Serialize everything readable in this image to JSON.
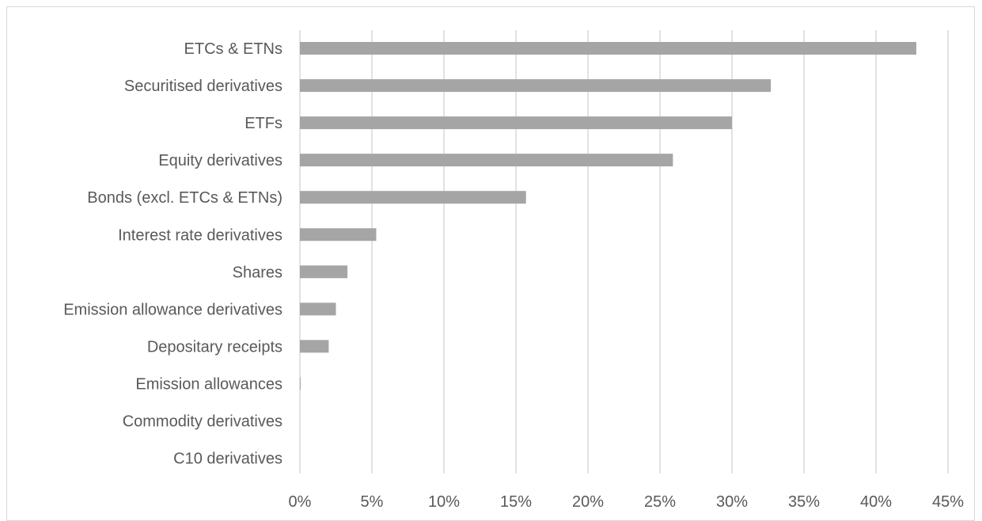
{
  "chart_data": {
    "type": "bar",
    "orientation": "horizontal",
    "title": "",
    "xlabel": "",
    "ylabel": "",
    "categories": [
      "ETCs & ETNs",
      "Securitised derivatives",
      "ETFs",
      "Equity derivatives",
      "Bonds (excl. ETCs & ETNs)",
      "Interest rate derivatives",
      "Shares",
      "Emission allowance derivatives",
      "Depositary receipts",
      "Emission allowances",
      "Commodity derivatives",
      "C10 derivatives"
    ],
    "values": [
      42.8,
      32.7,
      30.0,
      25.9,
      15.7,
      5.3,
      3.3,
      2.5,
      2.0,
      0.05,
      0.0,
      0.0
    ],
    "value_unit": "%",
    "xlim": [
      0,
      45
    ],
    "xticks": [
      "0%",
      "5%",
      "10%",
      "15%",
      "20%",
      "25%",
      "30%",
      "35%",
      "40%",
      "45%"
    ],
    "grid": "vertical",
    "legend": "none",
    "bar_color": "#a5a5a5"
  }
}
